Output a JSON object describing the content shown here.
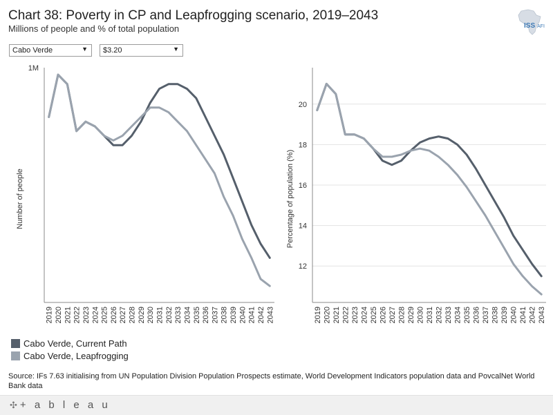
{
  "header": {
    "title": "Chart 38: Poverty in CP and Leapfrogging scenario, 2019–2043",
    "subtitle": "Millions of people and % of total population",
    "logo_text": "ISS",
    "logo_subtext": "AFI"
  },
  "filters": {
    "country": "Cabo Verde",
    "poverty_line": "$3.20"
  },
  "colors": {
    "current_path": "#555f6b",
    "leapfrogging": "#9aa3ae",
    "grid": "#e3e3e3",
    "axis": "#888888"
  },
  "chart_data": [
    {
      "type": "line",
      "title": "",
      "xlabel": "",
      "ylabel": "Number of people",
      "x": [
        "2019",
        "2020",
        "2021",
        "2022",
        "2023",
        "2024",
        "2025",
        "2026",
        "2027",
        "2028",
        "2029",
        "2030",
        "2031",
        "2032",
        "2033",
        "2034",
        "2035",
        "2036",
        "2037",
        "2038",
        "2039",
        "2040",
        "2041",
        "2042",
        "2043"
      ],
      "y_ticks": [
        {
          "value": 1.0,
          "label": "1M"
        }
      ],
      "ylim": [
        0.0,
        1.0
      ],
      "grid": false,
      "series": [
        {
          "name": "Cabo Verde, Current Path",
          "values": [
            0.79,
            0.97,
            0.93,
            0.73,
            0.77,
            0.75,
            0.71,
            0.67,
            0.67,
            0.71,
            0.77,
            0.85,
            0.91,
            0.93,
            0.93,
            0.91,
            0.87,
            0.79,
            0.71,
            0.63,
            0.53,
            0.43,
            0.33,
            0.25,
            0.19
          ]
        },
        {
          "name": "Cabo Verde, Leapfrogging",
          "values": [
            0.79,
            0.97,
            0.93,
            0.73,
            0.77,
            0.75,
            0.71,
            0.69,
            0.71,
            0.75,
            0.79,
            0.83,
            0.83,
            0.81,
            0.77,
            0.73,
            0.67,
            0.61,
            0.55,
            0.45,
            0.37,
            0.27,
            0.19,
            0.1,
            0.07
          ]
        }
      ]
    },
    {
      "type": "line",
      "title": "",
      "xlabel": "",
      "ylabel": "Percentage of population (%)",
      "x": [
        "2019",
        "2020",
        "2021",
        "2022",
        "2023",
        "2024",
        "2025",
        "2026",
        "2027",
        "2028",
        "2029",
        "2030",
        "2031",
        "2032",
        "2033",
        "2034",
        "2035",
        "2036",
        "2037",
        "2038",
        "2039",
        "2040",
        "2041",
        "2042",
        "2043"
      ],
      "y_ticks": [
        {
          "value": 12,
          "label": "12"
        },
        {
          "value": 14,
          "label": "14"
        },
        {
          "value": 16,
          "label": "16"
        },
        {
          "value": 18,
          "label": "18"
        },
        {
          "value": 20,
          "label": "20"
        }
      ],
      "ylim": [
        10.2,
        21.8
      ],
      "grid": true,
      "series": [
        {
          "name": "Cabo Verde, Current Path",
          "values": [
            19.7,
            21.0,
            20.5,
            18.5,
            18.5,
            18.3,
            17.8,
            17.2,
            17.0,
            17.2,
            17.7,
            18.1,
            18.3,
            18.4,
            18.3,
            18.0,
            17.5,
            16.8,
            16.0,
            15.2,
            14.4,
            13.5,
            12.8,
            12.1,
            11.5
          ]
        },
        {
          "name": "Cabo Verde, Leapfrogging",
          "values": [
            19.7,
            21.0,
            20.5,
            18.5,
            18.5,
            18.3,
            17.8,
            17.4,
            17.4,
            17.5,
            17.7,
            17.8,
            17.7,
            17.4,
            17.0,
            16.5,
            15.9,
            15.2,
            14.5,
            13.7,
            12.9,
            12.1,
            11.5,
            11.0,
            10.6
          ]
        }
      ]
    }
  ],
  "legend": {
    "items": [
      "Cabo Verde, Current Path",
      "Cabo Verde, Leapfrogging"
    ]
  },
  "source": "Source: IFs 7.63 initialising from UN Population Division Population Prospects estimate, World Development Indicators population data and PovcalNet World Bank data",
  "footer": {
    "brand": "+ a b l e a u"
  }
}
